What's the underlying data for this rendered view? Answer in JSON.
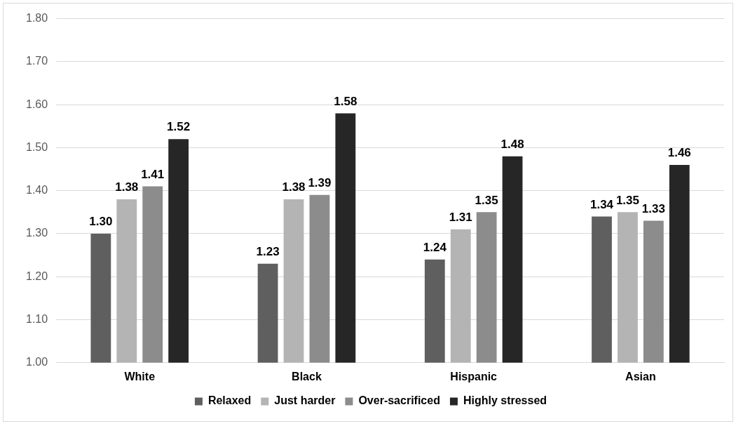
{
  "chart_data": {
    "type": "bar",
    "categories": [
      "White",
      "Black",
      "Hispanic",
      "Asian"
    ],
    "series": [
      {
        "name": "Relaxed",
        "color": "#5f5f5f",
        "values": [
          1.3,
          1.23,
          1.24,
          1.34
        ],
        "value_labels": [
          "1.30",
          "1.23",
          "1.24",
          "1.34"
        ]
      },
      {
        "name": "Just harder",
        "color": "#b4b4b4",
        "values": [
          1.38,
          1.38,
          1.31,
          1.35
        ],
        "value_labels": [
          "1.38",
          "1.38",
          "1.31",
          "1.35"
        ]
      },
      {
        "name": "Over-sacrificed",
        "color": "#8c8c8c",
        "values": [
          1.41,
          1.39,
          1.35,
          1.33
        ],
        "value_labels": [
          "1.41",
          "1.39",
          "1.35",
          "1.33"
        ]
      },
      {
        "name": "Highly stressed",
        "color": "#262626",
        "values": [
          1.52,
          1.58,
          1.48,
          1.46
        ],
        "value_labels": [
          "1.52",
          "1.58",
          "1.48",
          "1.46"
        ]
      }
    ],
    "ylim": [
      1.0,
      1.8
    ],
    "yticks": [
      {
        "value": 1.0,
        "label": "1.00"
      },
      {
        "value": 1.1,
        "label": "1.10"
      },
      {
        "value": 1.2,
        "label": "1.20"
      },
      {
        "value": 1.3,
        "label": "1.30"
      },
      {
        "value": 1.4,
        "label": "1.40"
      },
      {
        "value": 1.5,
        "label": "1.50"
      },
      {
        "value": 1.6,
        "label": "1.60"
      },
      {
        "value": 1.7,
        "label": "1.70"
      },
      {
        "value": 1.8,
        "label": "1.80"
      }
    ],
    "grid": "y",
    "legend": "bottom"
  }
}
